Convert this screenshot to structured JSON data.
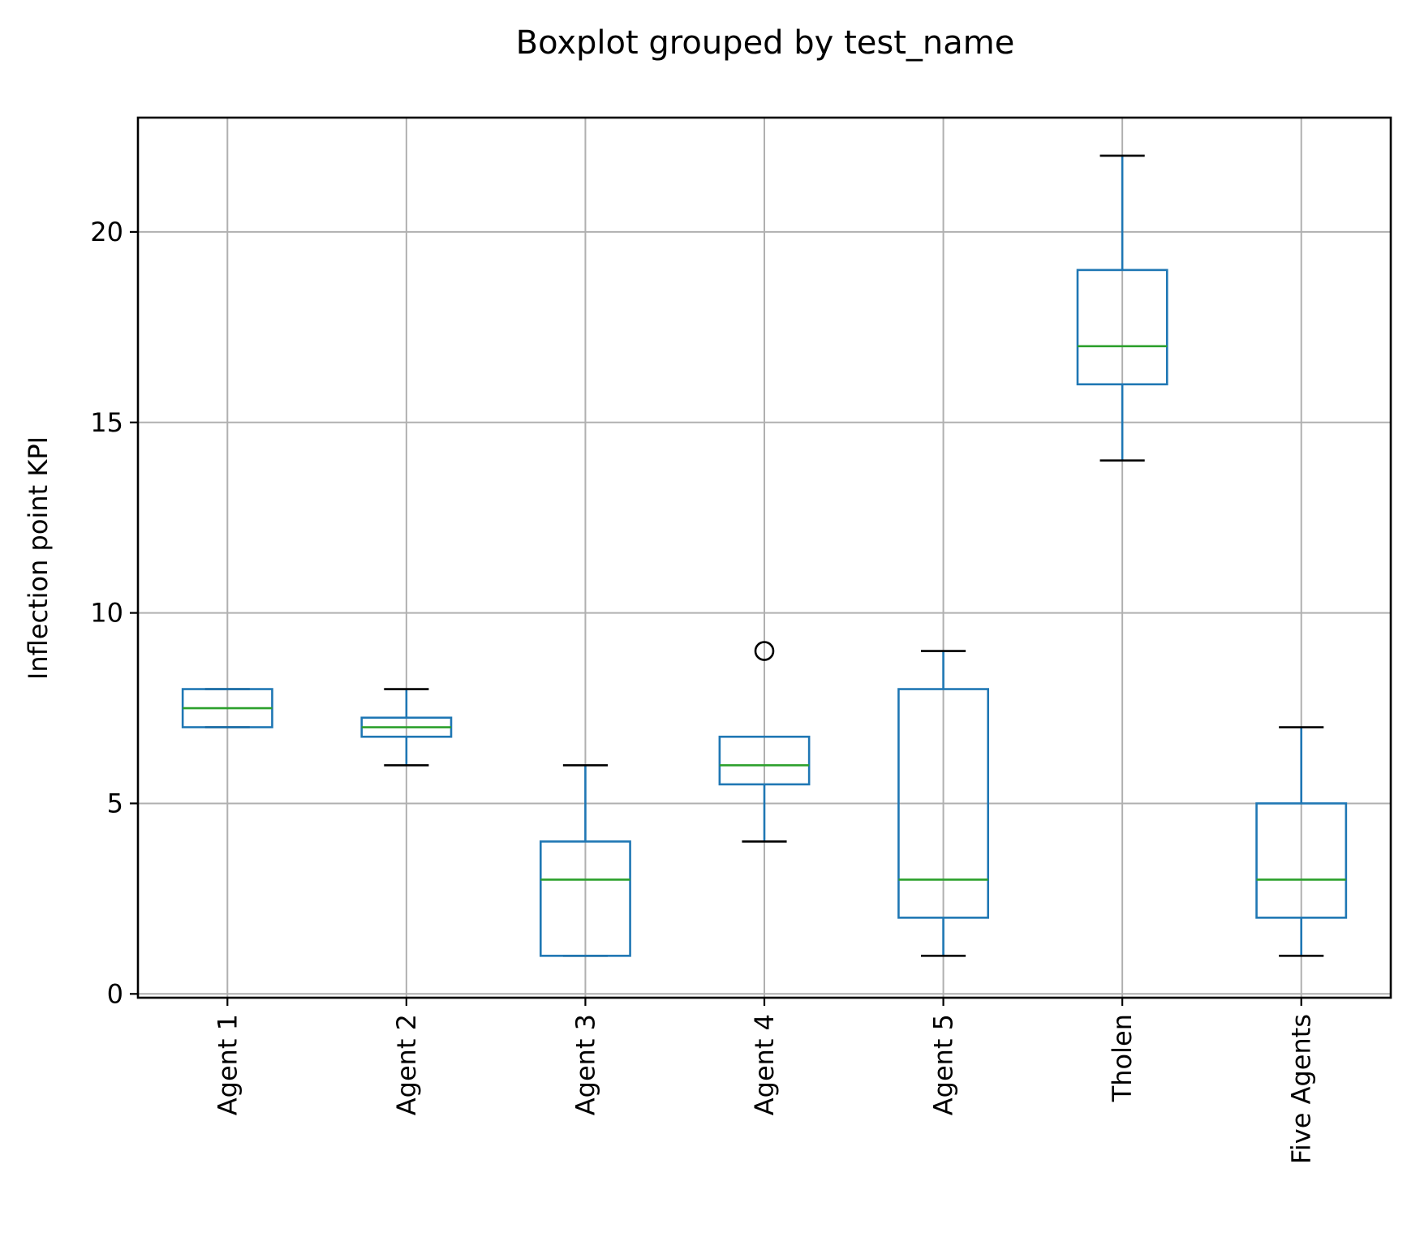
{
  "chart_data": {
    "type": "boxplot",
    "title": "Boxplot grouped by test_name",
    "xlabel": "",
    "ylabel": "Inflection point KPI",
    "ylim": [
      -0.1,
      23.0
    ],
    "yticks": [
      0,
      5,
      10,
      15,
      20
    ],
    "ytick_labels": [
      "0",
      "5",
      "10",
      "15",
      "20"
    ],
    "grid": true,
    "legend": "none",
    "categories": [
      "Agent 1",
      "Agent 2",
      "Agent 3",
      "Agent 4",
      "Agent 5",
      "Tholen",
      "Five Agents"
    ],
    "boxes": [
      {
        "category": "Agent 1",
        "whisker_low": 7,
        "q1": 7,
        "median": 7.5,
        "q3": 8,
        "whisker_high": 8,
        "outliers": []
      },
      {
        "category": "Agent 2",
        "whisker_low": 6,
        "q1": 6.75,
        "median": 7,
        "q3": 7.25,
        "whisker_high": 8,
        "outliers": []
      },
      {
        "category": "Agent 3",
        "whisker_low": 1,
        "q1": 1,
        "median": 3,
        "q3": 4,
        "whisker_high": 6,
        "outliers": []
      },
      {
        "category": "Agent 4",
        "whisker_low": 4,
        "q1": 5.5,
        "median": 6,
        "q3": 6.75,
        "whisker_high": 6.75,
        "outliers": [
          9
        ]
      },
      {
        "category": "Agent 5",
        "whisker_low": 1,
        "q1": 2,
        "median": 3,
        "q3": 8,
        "whisker_high": 9,
        "outliers": []
      },
      {
        "category": "Tholen",
        "whisker_low": 14,
        "q1": 16,
        "median": 17,
        "q3": 19,
        "whisker_high": 22,
        "outliers": []
      },
      {
        "category": "Five Agents",
        "whisker_low": 1,
        "q1": 2,
        "median": 3,
        "q3": 5,
        "whisker_high": 7,
        "outliers": []
      }
    ],
    "colors": {
      "box": "#1f77b4",
      "median": "#2ca02c",
      "whisker_cap": "#000000",
      "grid": "#b0b0b0",
      "frame": "#000000"
    }
  }
}
